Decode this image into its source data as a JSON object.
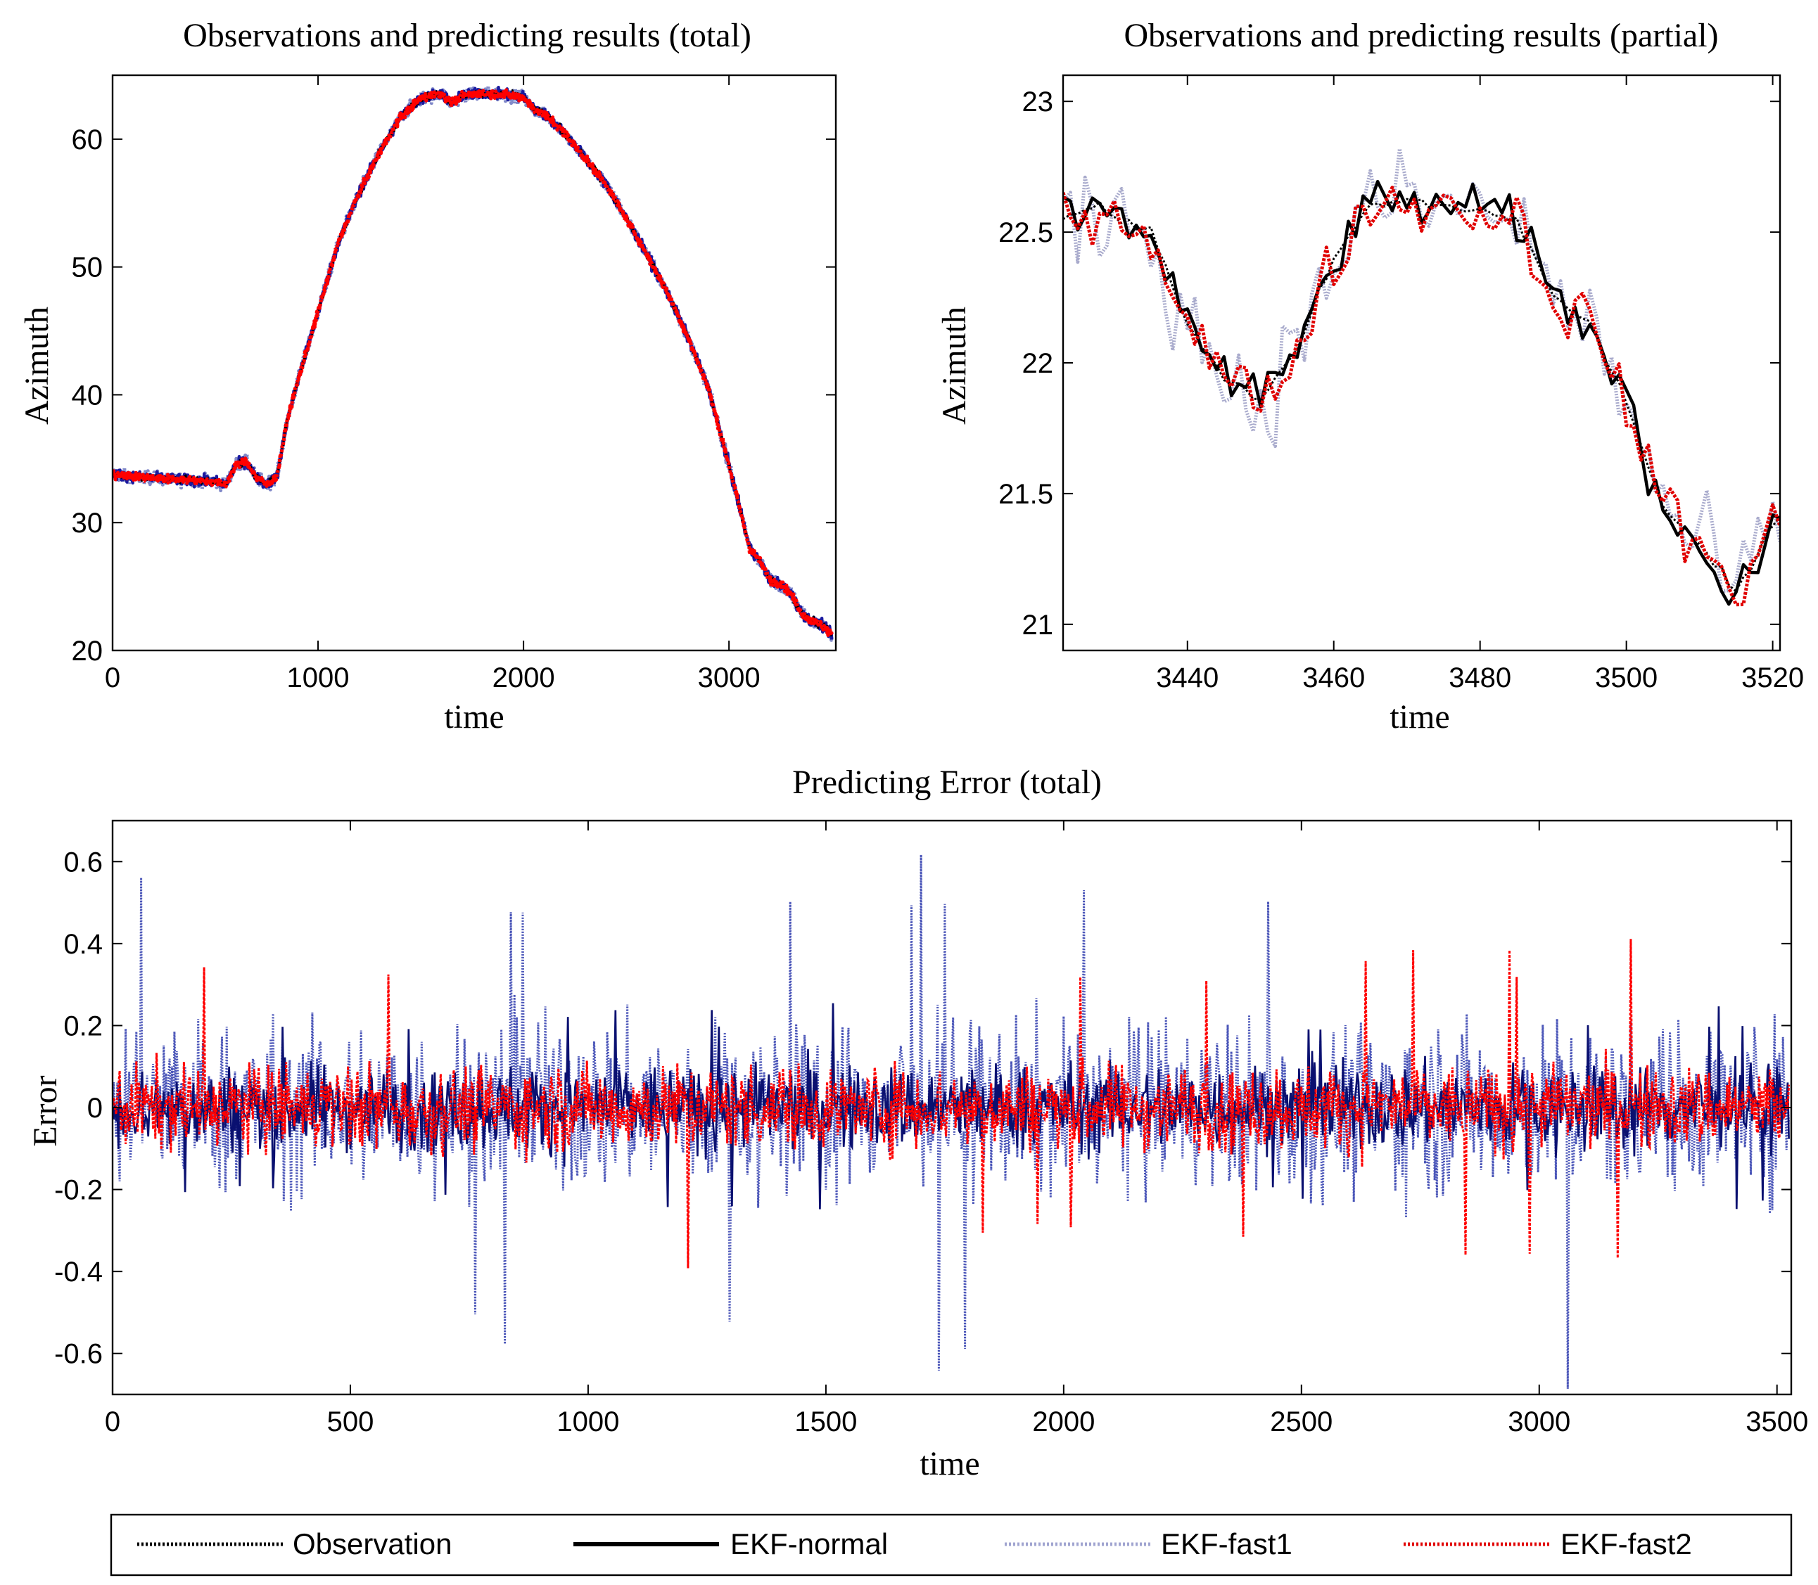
{
  "chart_data": [
    {
      "id": "total",
      "type": "line",
      "title": "Observations and predicting results (total)",
      "xlabel": "time",
      "ylabel": "Azimuth",
      "xlim": [
        0,
        3520
      ],
      "ylim": [
        20,
        65
      ],
      "xticks": [
        0,
        1000,
        2000,
        3000
      ],
      "yticks": [
        20,
        30,
        40,
        50,
        60
      ],
      "trend": {
        "x": [
          0,
          100,
          200,
          300,
          400,
          500,
          550,
          600,
          650,
          700,
          750,
          800,
          850,
          900,
          1000,
          1100,
          1200,
          1300,
          1400,
          1500,
          1600,
          1650,
          1700,
          1800,
          1900,
          2000,
          2050,
          2100,
          2200,
          2300,
          2400,
          2500,
          2600,
          2700,
          2800,
          2900,
          3000,
          3100,
          3150,
          3200,
          3250,
          3300,
          3350,
          3400,
          3450,
          3500
        ],
        "y": [
          33.8,
          33.6,
          33.5,
          33.4,
          33.3,
          33.2,
          33.0,
          34.5,
          34.8,
          33.5,
          33.0,
          33.6,
          38,
          41,
          46.5,
          52,
          55.8,
          59,
          61.7,
          63.2,
          63.6,
          62.8,
          63.4,
          63.6,
          63.5,
          63.3,
          62.3,
          62.0,
          60.5,
          58.5,
          56.5,
          53.8,
          51,
          48,
          44.5,
          40.5,
          34.5,
          28,
          27,
          25.5,
          25.2,
          24.5,
          23.0,
          22.3,
          22.0,
          21.2
        ]
      },
      "series": [
        {
          "name": "Observation",
          "color": "#000000",
          "noise": 0.3
        },
        {
          "name": "EKF-normal",
          "color": "#1a1aa0",
          "noise": 0.4
        },
        {
          "name": "EKF-fast1",
          "color": "#8088c8",
          "noise": 0.5
        },
        {
          "name": "EKF-fast2",
          "color": "#ff0000",
          "noise": 0.3
        }
      ]
    },
    {
      "id": "partial",
      "type": "line",
      "title": "Observations and predicting results (partial)",
      "xlabel": "time",
      "ylabel": "Azimuth",
      "xlim": [
        3423,
        3521
      ],
      "ylim": [
        20.9,
        23.1
      ],
      "xticks": [
        3440,
        3460,
        3480,
        3500,
        3520
      ],
      "yticks": [
        21,
        21.5,
        22,
        22.5,
        23
      ],
      "trend": {
        "x": [
          3423,
          3427,
          3431,
          3435,
          3440,
          3445,
          3450,
          3455,
          3460,
          3465,
          3470,
          3475,
          3480,
          3485,
          3490,
          3495,
          3500,
          3505,
          3510,
          3515,
          3521
        ],
        "y": [
          22.55,
          22.6,
          22.55,
          22.5,
          22.15,
          21.95,
          21.85,
          22.05,
          22.4,
          22.6,
          22.62,
          22.6,
          22.58,
          22.55,
          22.25,
          22.15,
          21.85,
          21.45,
          21.3,
          21.12,
          21.42
        ]
      },
      "series": [
        {
          "name": "Observation",
          "color": "#000000",
          "noise": 0.02
        },
        {
          "name": "EKF-normal",
          "color": "#000000",
          "noise": 0.09
        },
        {
          "name": "EKF-fast1",
          "color": "#a8aacc",
          "noise": 0.2
        },
        {
          "name": "EKF-fast2",
          "color": "#e00000",
          "noise": 0.11
        }
      ]
    },
    {
      "id": "error",
      "type": "line",
      "title": "Predicting Error (total)",
      "xlabel": "time",
      "ylabel": "Error",
      "xlim": [
        0,
        3530
      ],
      "ylim": [
        -0.7,
        0.7
      ],
      "xticks": [
        0,
        500,
        1000,
        1500,
        2000,
        2500,
        3000,
        3500
      ],
      "yticks": [
        -0.6,
        -0.4,
        -0.2,
        0,
        0.2,
        0.4,
        0.6
      ],
      "series": [
        {
          "name": "EKF-fast1",
          "color": "#4a55b8",
          "amplitude": 0.2,
          "peak_max": 0.65,
          "peak_min": -0.7
        },
        {
          "name": "EKF-normal",
          "color": "#0a1070",
          "amplitude": 0.1,
          "peak_max": 0.26,
          "peak_min": -0.27
        },
        {
          "name": "EKF-fast2",
          "color": "#ff0000",
          "amplitude": 0.1,
          "peak_max": 0.42,
          "peak_min": -0.4
        }
      ]
    }
  ],
  "legend": {
    "items": [
      {
        "label": "Observation",
        "color": "#000000",
        "style": "dotted"
      },
      {
        "label": "EKF-normal",
        "color": "#000000",
        "style": "solid"
      },
      {
        "label": "EKF-fast1",
        "color": "#a0a4d0",
        "style": "dotted"
      },
      {
        "label": "EKF-fast2",
        "color": "#e00000",
        "style": "dotted"
      }
    ]
  }
}
